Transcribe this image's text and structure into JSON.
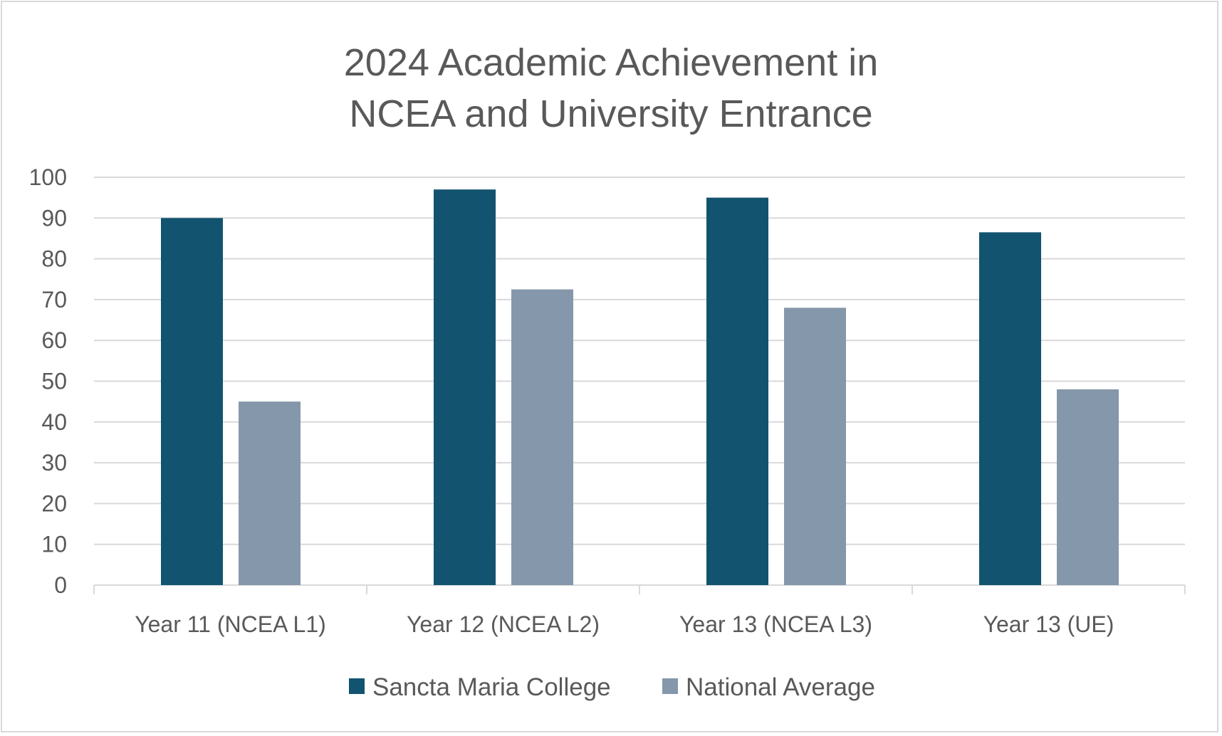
{
  "chart_data": {
    "type": "bar",
    "title_lines": [
      "2024 Academic Achievement in",
      "NCEA and University Entrance"
    ],
    "categories": [
      "Year 11 (NCEA L1)",
      "Year 12 (NCEA L2)",
      "Year 13 (NCEA L3)",
      "Year 13 (UE)"
    ],
    "series": [
      {
        "name": "Sancta Maria College",
        "values": [
          90,
          97,
          95,
          86.5
        ],
        "color": "#12536f"
      },
      {
        "name": "National Average",
        "values": [
          45,
          72.5,
          68,
          48
        ],
        "color": "#8597aa"
      }
    ],
    "ylim": [
      0,
      100
    ],
    "y_ticks": [
      "0",
      "10",
      "20",
      "30",
      "40",
      "50",
      "60",
      "70",
      "80",
      "90",
      "100"
    ],
    "grid": true,
    "legend_position": "bottom",
    "colors": {
      "gridline": "#d9d9d9",
      "axis": "#d9d9d9",
      "text": "#595959"
    }
  }
}
